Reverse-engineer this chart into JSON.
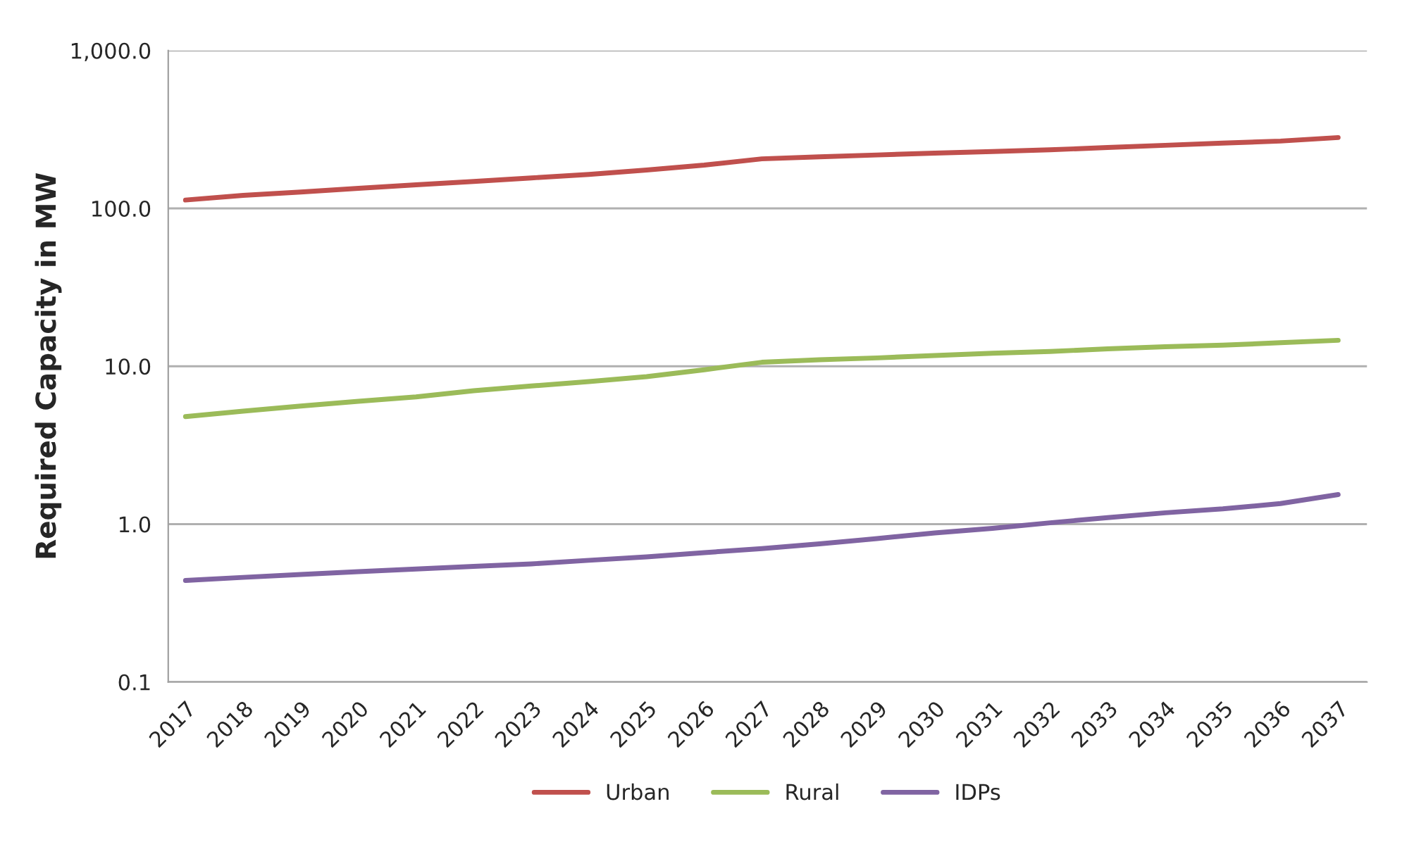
{
  "chart_data": {
    "type": "line",
    "ylabel": "Required Capacity in MW",
    "categories": [
      "2017",
      "2018",
      "2019",
      "2020",
      "2021",
      "2022",
      "2023",
      "2024",
      "2025",
      "2026",
      "2027",
      "2028",
      "2029",
      "2030",
      "2031",
      "2032",
      "2033",
      "2034",
      "2035",
      "2036",
      "2037"
    ],
    "series": [
      {
        "name": "Urban",
        "color": "#c0504d",
        "values": [
          113,
          121,
          127,
          134,
          141,
          148,
          156,
          164,
          175,
          188,
          206,
          212,
          218,
          224,
          229,
          235,
          243,
          251,
          259,
          267,
          281
        ]
      },
      {
        "name": "Rural",
        "color": "#9bbb59",
        "values": [
          4.8,
          5.2,
          5.6,
          6.0,
          6.4,
          7.0,
          7.5,
          8.0,
          8.6,
          9.5,
          10.6,
          11.0,
          11.3,
          11.7,
          12.1,
          12.4,
          12.9,
          13.3,
          13.6,
          14.1,
          14.6
        ]
      },
      {
        "name": "IDPs",
        "color": "#8064a2",
        "values": [
          0.44,
          0.46,
          0.48,
          0.5,
          0.52,
          0.54,
          0.56,
          0.59,
          0.62,
          0.66,
          0.7,
          0.75,
          0.81,
          0.88,
          0.94,
          1.02,
          1.1,
          1.18,
          1.25,
          1.35,
          1.54
        ]
      }
    ],
    "log": "y",
    "ylim": [
      0.1,
      1000
    ],
    "yticks": [
      {
        "value": 0.1,
        "label": "0.1"
      },
      {
        "value": 1,
        "label": "1.0"
      },
      {
        "value": 10,
        "label": "10.0"
      },
      {
        "value": 100,
        "label": "100.0"
      },
      {
        "value": 1000,
        "label": "1,000.0"
      }
    ],
    "grid": "y",
    "legend": "bottom",
    "marker": "none",
    "line_style": "solid"
  }
}
